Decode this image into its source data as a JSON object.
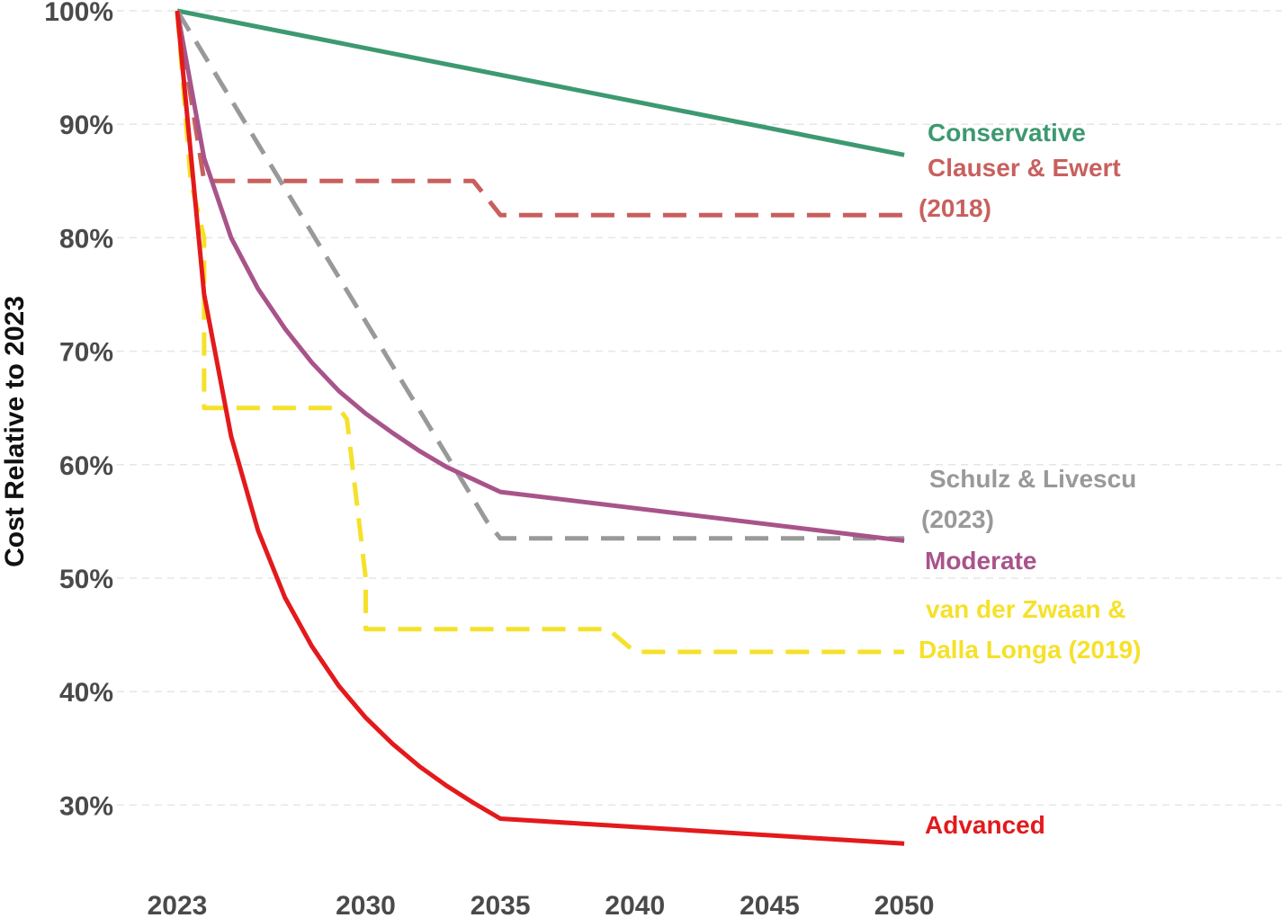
{
  "chart_data": {
    "type": "line",
    "title": "",
    "xlabel": "",
    "ylabel": "Cost Relative to 2023",
    "xlim": [
      2023,
      2050
    ],
    "ylim": [
      24,
      100
    ],
    "x_ticks": [
      "2023",
      "2030",
      "2035",
      "2040",
      "2045",
      "2050"
    ],
    "y_ticks": [
      "30%",
      "40%",
      "50%",
      "60%",
      "70%",
      "80%",
      "90%",
      "100%"
    ],
    "grid": "horizontal dashed",
    "legend": "direct labels at line ends (right)",
    "series": [
      {
        "name": "Conservative",
        "label_lines": [
          "Conservative"
        ],
        "color": "#3d9970",
        "style": "solid",
        "x": [
          2023,
          2050
        ],
        "y": [
          100,
          87.3
        ]
      },
      {
        "name": "Clauser & Ewert (2018)",
        "label_lines": [
          "Clauser & Ewert",
          "(2018)"
        ],
        "color": "#c8605e",
        "style": "dashed",
        "x": [
          2023,
          2024,
          2034,
          2035,
          2050
        ],
        "y": [
          100,
          85,
          85,
          82,
          82
        ]
      },
      {
        "name": "Schulz & Livescu (2023)",
        "label_lines": [
          "Schulz & Livescu",
          "(2023)"
        ],
        "color": "#999999",
        "style": "dashed",
        "x": [
          2023,
          2034.5,
          2035,
          2050
        ],
        "y": [
          100,
          55,
          53.5,
          53.5
        ]
      },
      {
        "name": "Moderate",
        "label_lines": [
          "Moderate"
        ],
        "color": "#a8548a",
        "style": "solid",
        "x": [
          2023,
          2024,
          2025,
          2026,
          2027,
          2028,
          2029,
          2030,
          2031,
          2032,
          2033,
          2034,
          2035,
          2050
        ],
        "y": [
          100,
          87,
          80,
          75.5,
          72,
          69,
          66.5,
          64.5,
          62.8,
          61.2,
          59.8,
          58.7,
          57.6,
          53.3
        ]
      },
      {
        "name": "van der Zwaan & Dalla Longa (2019)",
        "label_lines": [
          "van der Zwaan &",
          "Dalla Longa (2019)"
        ],
        "color": "#f5e12a",
        "style": "dashed",
        "x": [
          2023,
          2023.5,
          2024,
          2024,
          2029,
          2029.3,
          2030,
          2030,
          2039,
          2040,
          2050
        ],
        "y": [
          100,
          85,
          80,
          65,
          65,
          64,
          50,
          45.5,
          45.5,
          43.5,
          43.5
        ]
      },
      {
        "name": "Advanced",
        "label_lines": [
          "Advanced"
        ],
        "color": "#e31a1c",
        "style": "solid",
        "x": [
          2023,
          2024,
          2025,
          2026,
          2027,
          2028,
          2029,
          2030,
          2031,
          2032,
          2033,
          2034,
          2035,
          2050
        ],
        "y": [
          100,
          75,
          62.5,
          54.2,
          48.3,
          44,
          40.5,
          37.7,
          35.4,
          33.4,
          31.7,
          30.2,
          28.8,
          26.6
        ]
      }
    ]
  }
}
